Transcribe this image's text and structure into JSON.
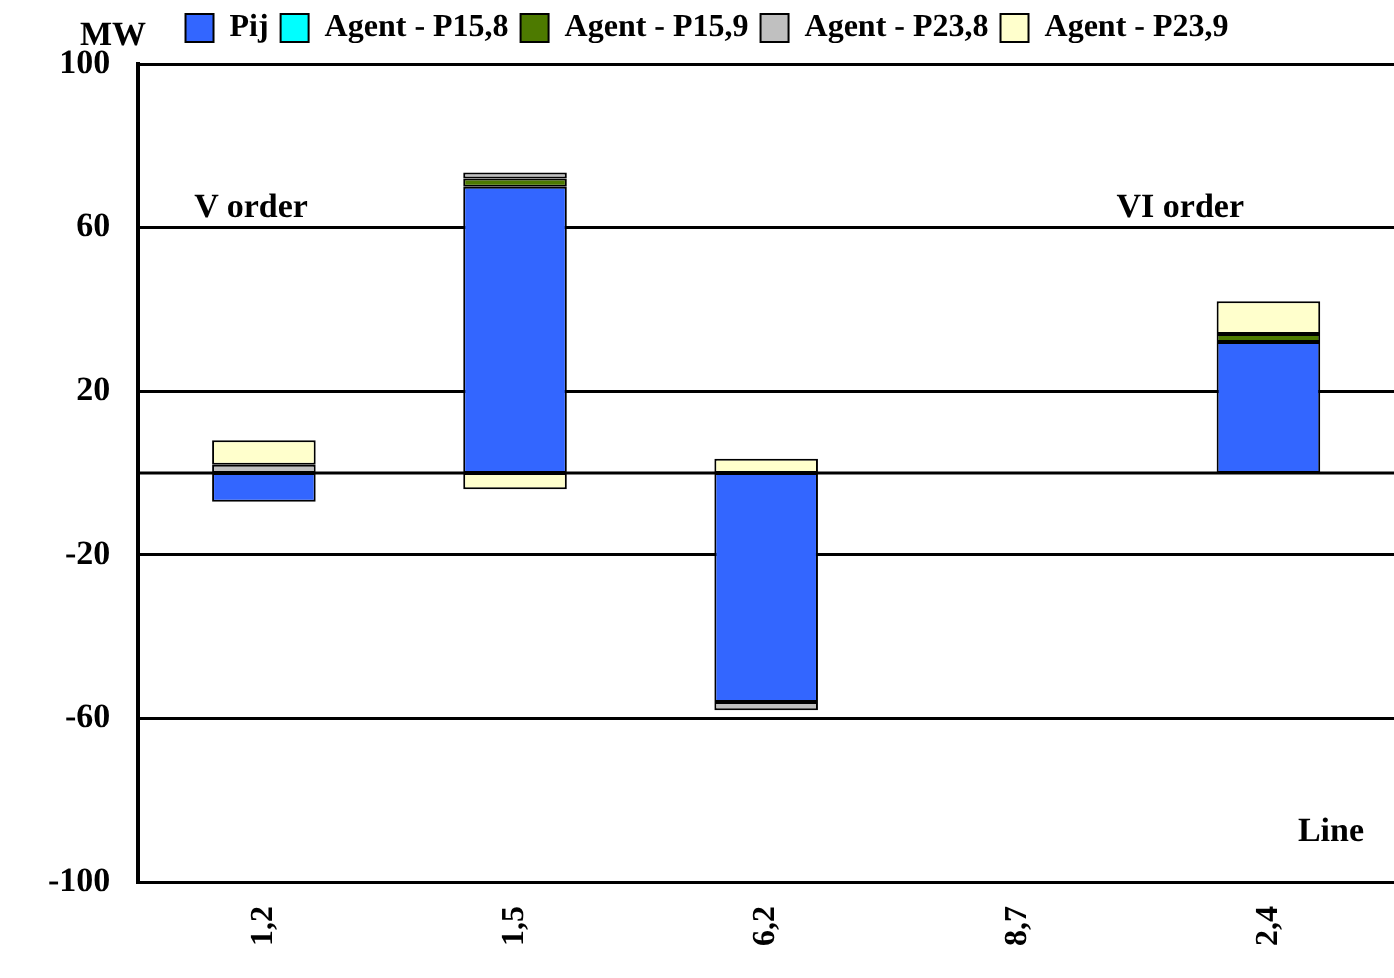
{
  "chart_data": {
    "type": "bar",
    "stacked": true,
    "ylabel": "MW",
    "xlabel": "Line",
    "categories": [
      "1,2",
      "1,5",
      "6,2",
      "8,7",
      "2,4"
    ],
    "series": [
      {
        "name": "Pij",
        "color": "#3366ff",
        "values": [
          -7,
          70,
          -56,
          null,
          32
        ]
      },
      {
        "name": "Agent - P15,8",
        "color": "#00ffff",
        "values": [
          null,
          null,
          null,
          null,
          null
        ]
      },
      {
        "name": "Agent - P15,9",
        "color": "#4d7a00",
        "values": [
          null,
          2,
          null,
          null,
          2
        ]
      },
      {
        "name": "Agent - P23,8",
        "color": "#c0c0c0",
        "values": [
          2,
          1.5,
          -2,
          null,
          null
        ]
      },
      {
        "name": "Agent - P23,9",
        "color": "#ffffcc",
        "values": [
          6,
          -4,
          3.5,
          null,
          8
        ]
      }
    ],
    "ylim": [
      -100,
      100
    ],
    "yticks": [
      -100,
      -60,
      -20,
      20,
      60,
      100
    ],
    "grid": "y",
    "legend": "top",
    "ref_lines": [
      {
        "axis": "y",
        "value": 0
      }
    ],
    "annotations": [
      "V order",
      "VI order"
    ]
  }
}
